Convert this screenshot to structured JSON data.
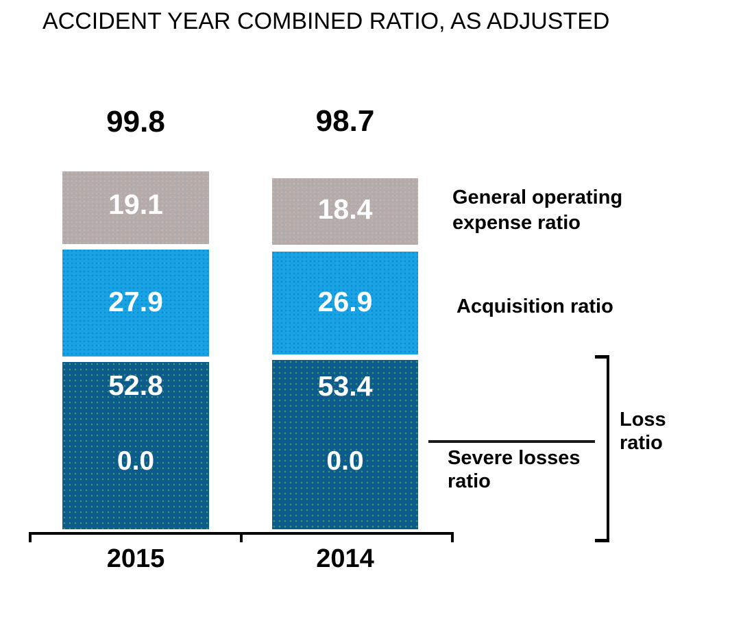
{
  "title": "ACCIDENT YEAR COMBINED RATIO, AS ADJUSTED",
  "bars": [
    {
      "year": "2015",
      "total": "99.8",
      "general_operating": "19.1",
      "acquisition": "27.9",
      "loss": "52.8",
      "severe": "0.0"
    },
    {
      "year": "2014",
      "total": "98.7",
      "general_operating": "18.4",
      "acquisition": "26.9",
      "loss": "53.4",
      "severe": "0.0"
    }
  ],
  "legend": {
    "general_operating": "General operating expense ratio",
    "acquisition": "Acquisition ratio",
    "severe_losses": "Severe losses ratio",
    "loss_ratio": "Loss ratio"
  },
  "colors": {
    "general_operating_segment": "#b3aca9",
    "acquisition_segment": "#18a4e4",
    "loss_segment": "#0d5b8c",
    "value_text": "#ffffff",
    "text": "#000000"
  },
  "chart_data": {
    "type": "bar",
    "stacked": true,
    "title": "ACCIDENT YEAR COMBINED RATIO, AS ADJUSTED",
    "categories": [
      "2015",
      "2014"
    ],
    "totals": [
      99.8,
      98.7
    ],
    "series": [
      {
        "name": "Severe losses ratio",
        "values": [
          0.0,
          0.0
        ],
        "color": "#0d5b8c"
      },
      {
        "name": "Loss ratio",
        "values": [
          52.8,
          53.4
        ],
        "color": "#0d5b8c"
      },
      {
        "name": "Acquisition ratio",
        "values": [
          27.9,
          26.9
        ],
        "color": "#18a4e4"
      },
      {
        "name": "General operating expense ratio",
        "values": [
          19.1,
          18.4
        ],
        "color": "#b3aca9"
      }
    ],
    "xlabel": "",
    "ylabel": "",
    "grid": false,
    "value_labels": true,
    "legend_position": "right",
    "notes": "Loss ratio bracket on the right spans the dark segment (loss + severe losses); severe losses ratio shown as 0.0 inside the dark segment with a callout line"
  }
}
